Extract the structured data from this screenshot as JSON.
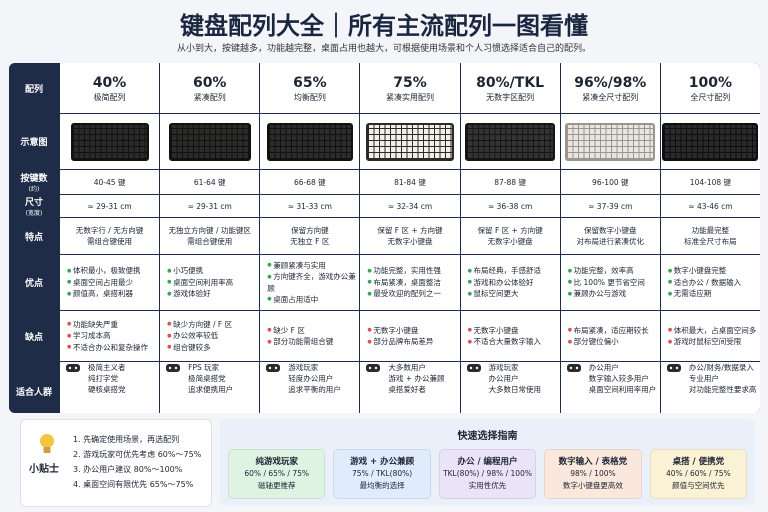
{
  "header": {
    "title": "键盘配列大全｜所有主流配列一图看懂",
    "subtitle": "从小到大，按键越多，功能越完整，桌面占用也越大，可根据使用场景和个人习惯选择适合自己的配列。"
  },
  "table": {
    "header_label": "配列",
    "image_label": "示意图",
    "columns": [
      {
        "name": "40%",
        "desc": "极简配列"
      },
      {
        "name": "60%",
        "desc": "紧凑配列"
      },
      {
        "name": "65%",
        "desc": "均衡配列"
      },
      {
        "name": "75%",
        "desc": "紧凑实用配列"
      },
      {
        "name": "80%/TKL",
        "desc": "无数字区配列"
      },
      {
        "name": "96%/98%",
        "desc": "紧凑全尺寸配列"
      },
      {
        "name": "100%",
        "desc": "全尺寸配列"
      }
    ],
    "rows": [
      {
        "label": "按键数",
        "note": "(约)",
        "cells": [
          [
            "40-45 键"
          ],
          [
            "61-64 键"
          ],
          [
            "66-68 键"
          ],
          [
            "81-84 键"
          ],
          [
            "87-88 键"
          ],
          [
            "96-100 键"
          ],
          [
            "104-108 键"
          ]
        ]
      },
      {
        "label": "尺寸",
        "note": "(宽度)",
        "cells": [
          [
            "≈ 29-31 cm"
          ],
          [
            "≈ 29-31 cm"
          ],
          [
            "≈ 31-33 cm"
          ],
          [
            "≈ 32-34 cm"
          ],
          [
            "≈ 36-38 cm"
          ],
          [
            "≈ 37-39 cm"
          ],
          [
            "≈ 43-46 cm"
          ]
        ]
      },
      {
        "label": "特点",
        "cells": [
          [
            "无数字行 / 无方向键",
            "需组合键使用"
          ],
          [
            "无独立方向键 / 功能键区",
            "需组合键使用"
          ],
          [
            "保留方向键",
            "无独立 F 区"
          ],
          [
            "保留 F 区 + 方向键",
            "无数字小键盘"
          ],
          [
            "保留 F 区 + 方向键",
            "无数字小键盘"
          ],
          [
            "保留数字小键盘",
            "对布局进行紧凑优化"
          ],
          [
            "功能最完整",
            "标准全尺寸布局"
          ]
        ]
      },
      {
        "label": "优点",
        "cells": [
          [
            "体积最小，极致便携",
            "桌面空间占用最少",
            "颜值高，桌搭利器"
          ],
          [
            "小巧便携",
            "桌面空间利用率高",
            "游戏体验好"
          ],
          [
            "兼顾紧凑与实用",
            "方向键齐全，游戏办公兼顾",
            "桌面占用适中"
          ],
          [
            "功能完整，实用性强",
            "布局紧凑，桌面整洁",
            "最受欢迎的配列之一"
          ],
          [
            "布局经典，手感舒适",
            "游戏和办公体验好",
            "鼠标空间更大"
          ],
          [
            "功能完整，效率高",
            "比 100% 更节省空间",
            "兼顾办公与游戏"
          ],
          [
            "数字小键盘完整",
            "适合办公 / 数据输入",
            "无需适应期"
          ]
        ]
      },
      {
        "label": "缺点",
        "cells": [
          [
            "功能缺失严重",
            "学习成本高",
            "不适合办公和复杂操作"
          ],
          [
            "缺少方向键 / F 区",
            "办公效率较低",
            "组合键较多"
          ],
          [
            "缺少 F 区",
            "部分功能需组合键"
          ],
          [
            "无数字小键盘",
            "部分品牌布局差异"
          ],
          [
            "无数字小键盘",
            "不适合大量数字输入"
          ],
          [
            "布局紧凑，适应期较长",
            "部分键位偏小"
          ],
          [
            "体积最大，占桌面空间多",
            "游戏时鼠标空间受限"
          ]
        ]
      },
      {
        "label": "适合人群",
        "cells": [
          [
            "极简主义者",
            "纯打字党",
            "硬核桌搭党"
          ],
          [
            "FPS 玩家",
            "极简桌搭党",
            "追求便携用户"
          ],
          [
            "游戏玩家",
            "轻度办公用户",
            "追求平衡的用户"
          ],
          [
            "大多数用户",
            "游戏 + 办公兼顾",
            "桌搭爱好者"
          ],
          [
            "游戏玩家",
            "办公用户",
            "大多数日常使用"
          ],
          [
            "办公用户",
            "数字输入较多用户",
            "桌面空间利用率用户"
          ],
          [
            "办公/财务/数据录入",
            "专业用户",
            "对功能完整性要求高"
          ]
        ]
      }
    ]
  },
  "tips": {
    "label": "小贴士",
    "items": [
      "1. 先确定使用场景，再选配列",
      "2. 游戏玩家可优先考虑 60%～75%",
      "3. 办公用户建议 80%～100%",
      "4. 桌面空间有限优先 65%～75%"
    ]
  },
  "guide": {
    "title": "快速选择指南",
    "boxes": [
      {
        "title": "纯游戏玩家",
        "layouts": "60% / 65% / 75%",
        "note": "磁轴更推荐",
        "color": "#dff3e2"
      },
      {
        "title": "游戏 + 办公兼顾",
        "layouts": "75% / TKL(80%)",
        "note": "最均衡的选择",
        "color": "#e0ebfb"
      },
      {
        "title": "办公 / 编程用户",
        "layouts": "TKL(80%) / 98% / 100%",
        "note": "实用性优先",
        "color": "#ebe3f8"
      },
      {
        "title": "数字输入 / 表格党",
        "layouts": "98% / 100%",
        "note": "数字小键盘更高效",
        "color": "#fbe8dc"
      },
      {
        "title": "桌搭 / 便携党",
        "layouts": "40% / 60% / 75%",
        "note": "颜值与空间优先",
        "color": "#fbf1d4"
      }
    ]
  }
}
